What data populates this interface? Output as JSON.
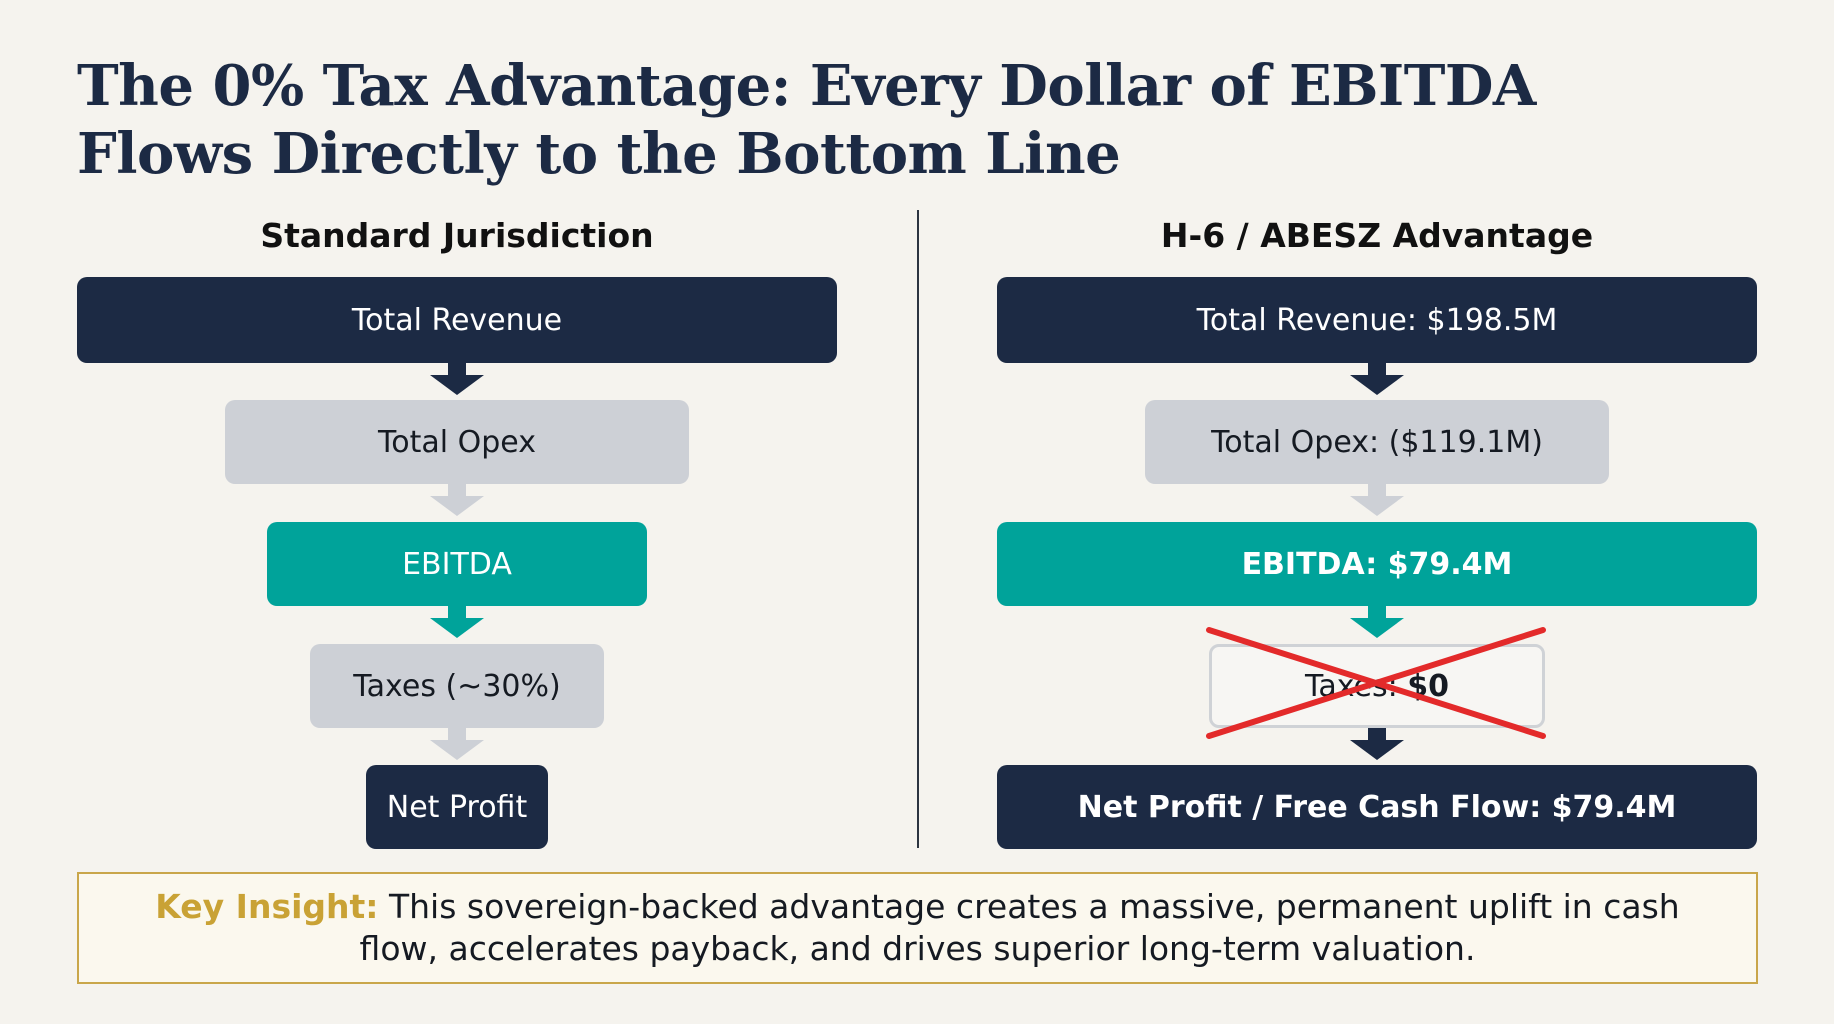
{
  "title": "The 0% Tax Advantage: Every Dollar of EBITDA Flows Directly to the Bottom Line",
  "left": {
    "heading": "Standard Jurisdiction",
    "revenue": "Total Revenue",
    "opex": "Total Opex",
    "ebitda": "EBITDA",
    "taxes": "Taxes (~30%)",
    "net": "Net Profit"
  },
  "right": {
    "heading": "H-6 / ABESZ Advantage",
    "revenue": "Total Revenue: $198.5M",
    "opex": "Total Opex: ($119.1M)",
    "ebitda": "EBITDA: $79.4M",
    "taxes_label": "Taxes: ",
    "taxes_value": "$0",
    "net": "Net Profit / Free Cash Flow: $79.4M"
  },
  "insight": {
    "label": "Key Insight:",
    "text": " This sovereign-backed advantage creates a massive, permanent uplift in cash flow, accelerates payback, and drives superior long-term valuation."
  },
  "colors": {
    "navy": "#1c2a44",
    "teal": "#00a39a",
    "grey": "#cdd0d6",
    "cross": "#e32a2a",
    "gold": "#c9a235"
  }
}
